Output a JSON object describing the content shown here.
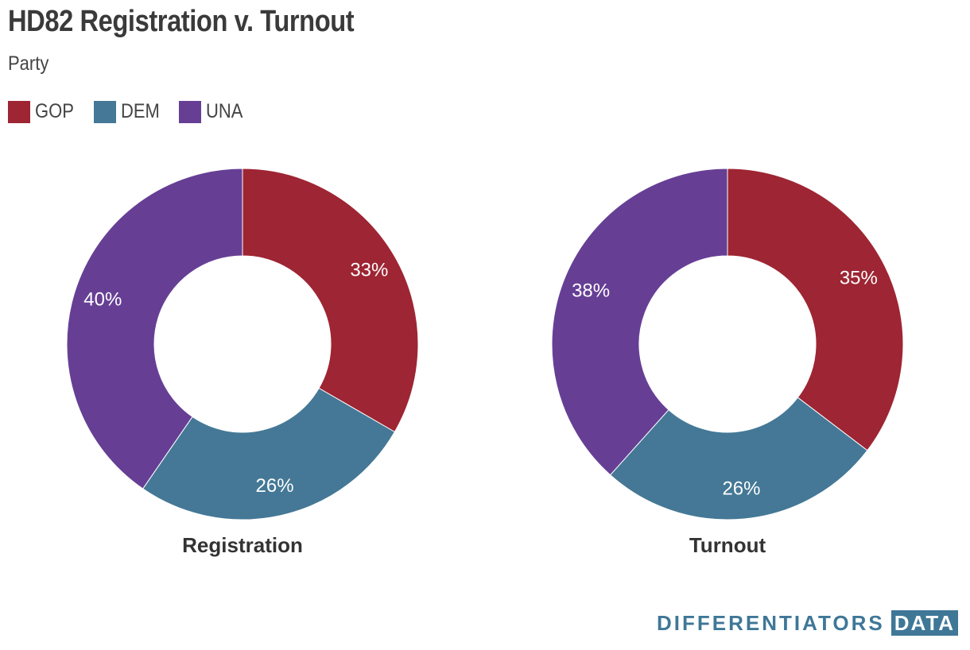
{
  "title": "HD82 Registration v. Turnout",
  "subtitle": "Party",
  "legend": [
    {
      "label": "GOP",
      "color": "#9e2533"
    },
    {
      "label": "DEM",
      "color": "#447896"
    },
    {
      "label": "UNA",
      "color": "#663f95"
    }
  ],
  "chart_data": [
    {
      "type": "pie",
      "title": "Registration",
      "categories": [
        "GOP",
        "DEM",
        "UNA"
      ],
      "values": [
        33,
        26,
        40
      ],
      "labels": [
        "33%",
        "26%",
        "40%"
      ],
      "colors": [
        "#9e2533",
        "#447896",
        "#663f95"
      ]
    },
    {
      "type": "pie",
      "title": "Turnout",
      "categories": [
        "GOP",
        "DEM",
        "UNA"
      ],
      "values": [
        35,
        26,
        38
      ],
      "labels": [
        "35%",
        "26%",
        "38%"
      ],
      "colors": [
        "#9e2533",
        "#447896",
        "#663f95"
      ]
    }
  ],
  "brand": {
    "word": "DIFFERENTIATORS",
    "box": "DATA"
  }
}
